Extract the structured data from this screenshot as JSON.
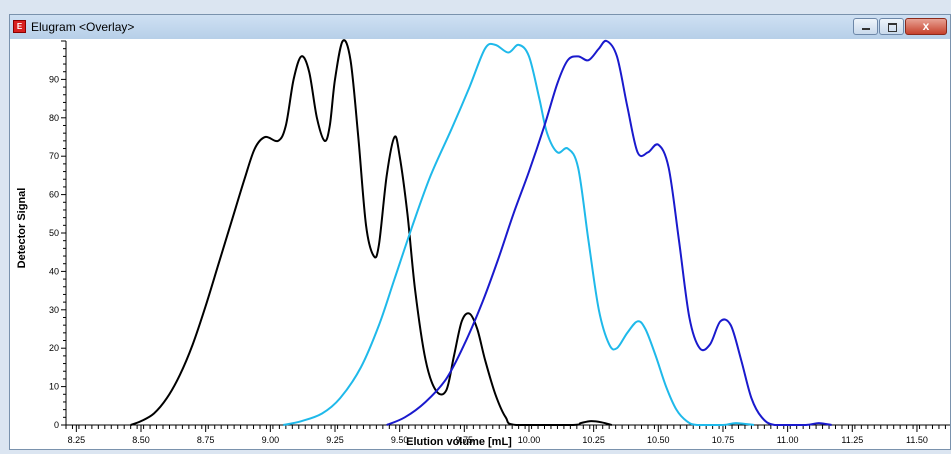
{
  "window": {
    "title": "Elugram <Overlay>",
    "controls": {
      "minimize": "minimize",
      "maximize": "maximize",
      "close": "x"
    }
  },
  "chart_data": {
    "type": "line",
    "xlabel": "Elution volume [mL]",
    "ylabel": "Detector Signal",
    "xlim": [
      8.21,
      11.62
    ],
    "ylim": [
      0,
      100
    ],
    "xticks": [
      "8.25",
      "8.50",
      "8.75",
      "9.00",
      "9.25",
      "9.50",
      "9.75",
      "10.00",
      "10.25",
      "10.50",
      "10.75",
      "11.00",
      "11.25",
      "11.50"
    ],
    "yticks": [
      "0",
      "10",
      "20",
      "30",
      "40",
      "50",
      "60",
      "70",
      "80",
      "90"
    ],
    "grid": false,
    "legend": "none",
    "series": [
      {
        "color": "#000000",
        "points": [
          [
            8.46,
            0
          ],
          [
            8.5,
            1
          ],
          [
            8.55,
            3
          ],
          [
            8.6,
            7
          ],
          [
            8.65,
            13
          ],
          [
            8.7,
            21
          ],
          [
            8.75,
            31
          ],
          [
            8.8,
            42
          ],
          [
            8.85,
            53
          ],
          [
            8.9,
            64
          ],
          [
            8.94,
            72
          ],
          [
            8.98,
            75
          ],
          [
            9.03,
            74
          ],
          [
            9.06,
            78
          ],
          [
            9.09,
            90
          ],
          [
            9.12,
            96
          ],
          [
            9.15,
            92
          ],
          [
            9.18,
            80
          ],
          [
            9.21,
            74
          ],
          [
            9.23,
            78
          ],
          [
            9.25,
            90
          ],
          [
            9.28,
            100
          ],
          [
            9.31,
            95
          ],
          [
            9.34,
            75
          ],
          [
            9.37,
            52
          ],
          [
            9.4,
            44
          ],
          [
            9.42,
            47
          ],
          [
            9.45,
            65
          ],
          [
            9.48,
            75
          ],
          [
            9.5,
            70
          ],
          [
            9.53,
            55
          ],
          [
            9.56,
            35
          ],
          [
            9.6,
            17
          ],
          [
            9.64,
            9
          ],
          [
            9.68,
            9
          ],
          [
            9.71,
            18
          ],
          [
            9.74,
            27
          ],
          [
            9.77,
            29
          ],
          [
            9.8,
            25
          ],
          [
            9.83,
            17
          ],
          [
            9.87,
            8
          ],
          [
            9.91,
            2
          ],
          [
            9.95,
            0
          ],
          [
            10.17,
            0
          ],
          [
            10.2,
            0.5
          ],
          [
            10.24,
            1
          ],
          [
            10.28,
            0.7
          ],
          [
            10.32,
            0
          ]
        ]
      },
      {
        "color": "#1fb9ea",
        "points": [
          [
            9.05,
            0
          ],
          [
            9.12,
            1
          ],
          [
            9.2,
            3
          ],
          [
            9.27,
            7
          ],
          [
            9.35,
            15
          ],
          [
            9.42,
            26
          ],
          [
            9.48,
            38
          ],
          [
            9.55,
            52
          ],
          [
            9.62,
            65
          ],
          [
            9.7,
            77
          ],
          [
            9.77,
            88
          ],
          [
            9.83,
            98
          ],
          [
            9.87,
            99
          ],
          [
            9.92,
            97
          ],
          [
            9.96,
            99
          ],
          [
            10.0,
            96
          ],
          [
            10.04,
            85
          ],
          [
            10.07,
            76
          ],
          [
            10.11,
            71
          ],
          [
            10.15,
            72
          ],
          [
            10.19,
            67
          ],
          [
            10.23,
            48
          ],
          [
            10.27,
            30
          ],
          [
            10.31,
            21
          ],
          [
            10.34,
            20
          ],
          [
            10.38,
            24
          ],
          [
            10.42,
            27
          ],
          [
            10.45,
            25
          ],
          [
            10.49,
            18
          ],
          [
            10.53,
            10
          ],
          [
            10.57,
            4
          ],
          [
            10.61,
            1
          ],
          [
            10.65,
            0
          ],
          [
            10.75,
            0
          ],
          [
            10.8,
            0.5
          ],
          [
            10.87,
            0
          ]
        ]
      },
      {
        "color": "#1a1acd",
        "points": [
          [
            9.45,
            0
          ],
          [
            9.52,
            2
          ],
          [
            9.6,
            6
          ],
          [
            9.68,
            12
          ],
          [
            9.75,
            21
          ],
          [
            9.82,
            32
          ],
          [
            9.88,
            43
          ],
          [
            9.94,
            55
          ],
          [
            10.0,
            66
          ],
          [
            10.06,
            78
          ],
          [
            10.11,
            89
          ],
          [
            10.15,
            95
          ],
          [
            10.19,
            96
          ],
          [
            10.23,
            95
          ],
          [
            10.27,
            98
          ],
          [
            10.3,
            100
          ],
          [
            10.34,
            96
          ],
          [
            10.38,
            83
          ],
          [
            10.42,
            71
          ],
          [
            10.46,
            71
          ],
          [
            10.5,
            73
          ],
          [
            10.54,
            67
          ],
          [
            10.58,
            48
          ],
          [
            10.62,
            28
          ],
          [
            10.66,
            20
          ],
          [
            10.7,
            21
          ],
          [
            10.74,
            27
          ],
          [
            10.78,
            26
          ],
          [
            10.82,
            17
          ],
          [
            10.86,
            7
          ],
          [
            10.9,
            2
          ],
          [
            10.95,
            0
          ],
          [
            11.07,
            0
          ],
          [
            11.12,
            0.5
          ],
          [
            11.17,
            0
          ]
        ]
      }
    ]
  }
}
